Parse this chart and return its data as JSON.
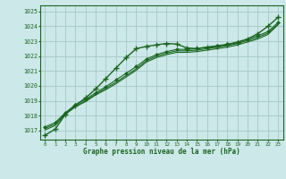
{
  "title": "Graphe pression niveau de la mer (hPa)",
  "bg_color": "#cce8e8",
  "grid_color": "#aacccc",
  "line_color": "#1a6620",
  "x_labels": [
    "0",
    "1",
    "2",
    "3",
    "4",
    "5",
    "6",
    "7",
    "8",
    "9",
    "10",
    "11",
    "12",
    "13",
    "14",
    "15",
    "16",
    "17",
    "18",
    "19",
    "20",
    "21",
    "22",
    "23"
  ],
  "ylim": [
    1016.4,
    1025.4
  ],
  "yticks": [
    1017,
    1018,
    1019,
    1020,
    1021,
    1022,
    1023,
    1024,
    1025
  ],
  "series": {
    "main_plus": [
      1016.7,
      1017.1,
      1018.1,
      1018.7,
      1019.2,
      1019.8,
      1020.5,
      1021.2,
      1021.9,
      1022.5,
      1022.65,
      1022.75,
      1022.85,
      1022.8,
      1022.55,
      1022.5,
      1022.6,
      1022.65,
      1022.75,
      1022.9,
      1023.15,
      1023.5,
      1024.0,
      1024.6
    ],
    "straight1": [
      1017.15,
      1017.45,
      1018.15,
      1018.65,
      1019.0,
      1019.45,
      1019.85,
      1020.25,
      1020.7,
      1021.15,
      1021.7,
      1022.0,
      1022.2,
      1022.35,
      1022.35,
      1022.4,
      1022.5,
      1022.6,
      1022.7,
      1022.85,
      1023.05,
      1023.25,
      1023.55,
      1024.15
    ],
    "straight2": [
      1017.05,
      1017.35,
      1018.1,
      1018.6,
      1018.95,
      1019.4,
      1019.75,
      1020.15,
      1020.6,
      1021.05,
      1021.6,
      1021.9,
      1022.1,
      1022.25,
      1022.25,
      1022.3,
      1022.4,
      1022.5,
      1022.6,
      1022.75,
      1022.95,
      1023.15,
      1023.45,
      1024.1
    ],
    "diamond": [
      1017.25,
      1017.55,
      1018.2,
      1018.75,
      1019.1,
      1019.55,
      1019.95,
      1020.4,
      1020.85,
      1021.3,
      1021.8,
      1022.1,
      1022.3,
      1022.45,
      1022.45,
      1022.5,
      1022.6,
      1022.7,
      1022.8,
      1022.95,
      1023.15,
      1023.35,
      1023.65,
      1024.25
    ]
  }
}
